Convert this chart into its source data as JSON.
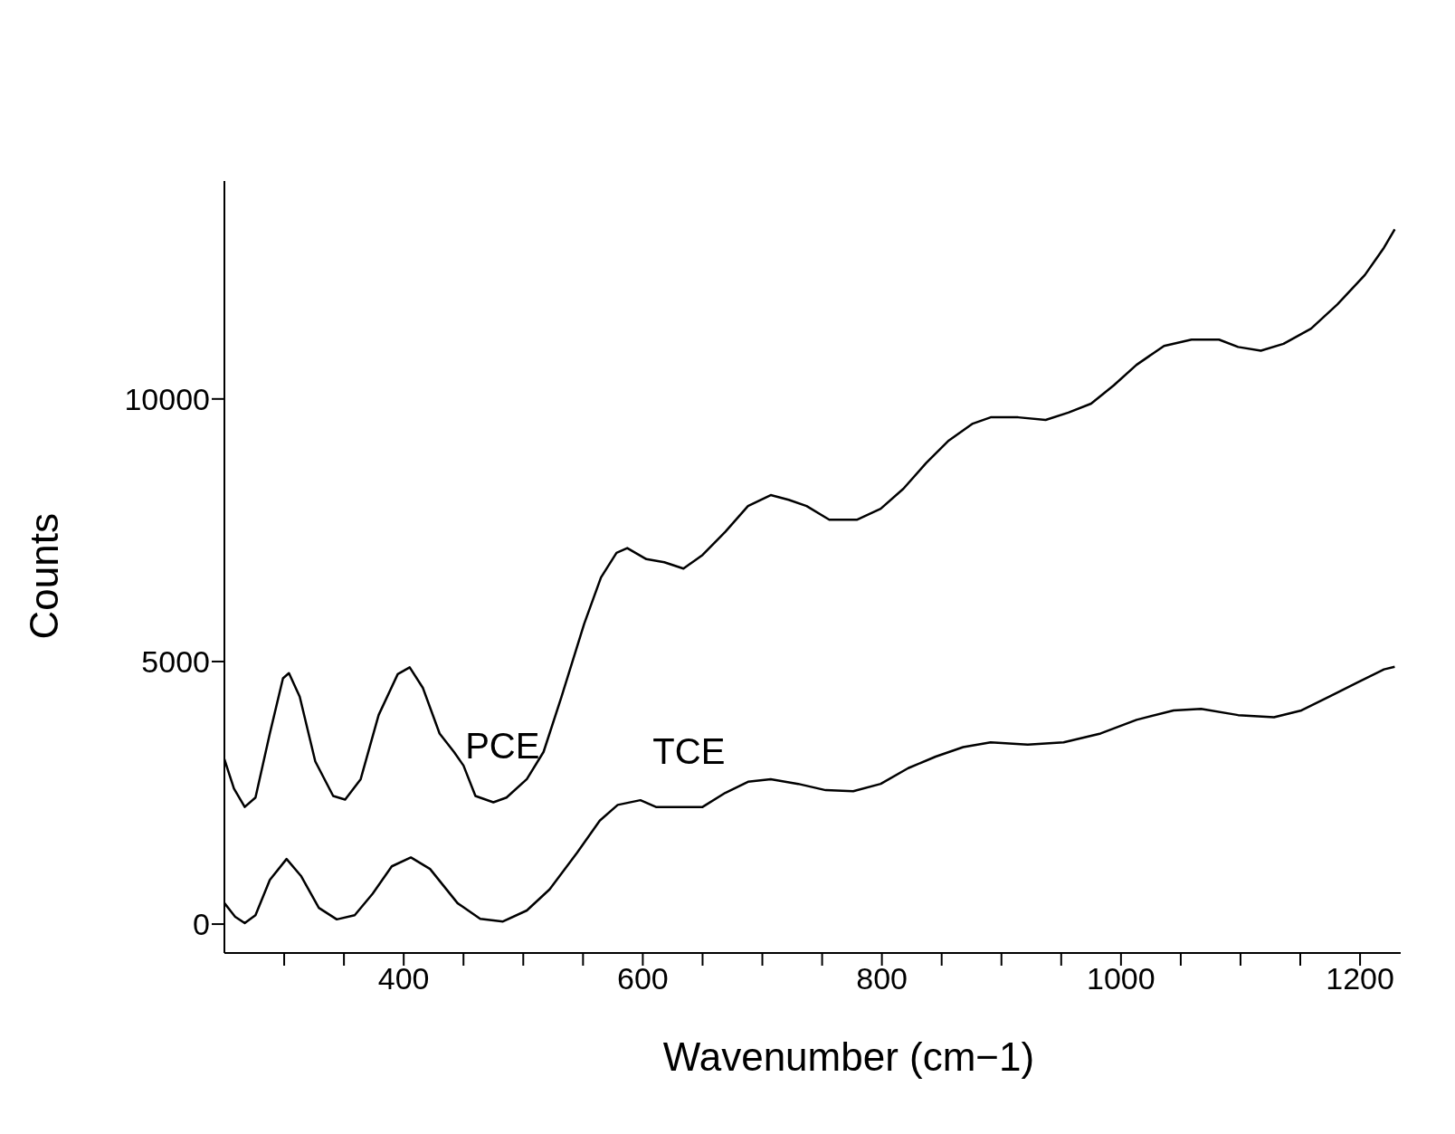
{
  "chart_data": {
    "type": "line",
    "xlabel": "Wavenumber (cm−1)",
    "ylabel": "Counts",
    "xlim": [
      250,
      1234
    ],
    "ylim": [
      -550,
      14150
    ],
    "xticks": [
      {
        "value": 300,
        "label": null
      },
      {
        "value": 350,
        "label": null
      },
      400,
      {
        "value": 450,
        "label": null
      },
      {
        "value": 500,
        "label": null
      },
      {
        "value": 550,
        "label": null
      },
      600,
      {
        "value": 650,
        "label": null
      },
      {
        "value": 700,
        "label": null
      },
      {
        "value": 750,
        "label": null
      },
      800,
      {
        "value": 850,
        "label": null
      },
      {
        "value": 900,
        "label": null
      },
      {
        "value": 950,
        "label": null
      },
      1000,
      {
        "value": 1050,
        "label": null
      },
      {
        "value": 1100,
        "label": null
      },
      {
        "value": 1150,
        "label": null
      },
      1200
    ],
    "yticks": [
      0,
      5000,
      10000
    ],
    "grid": false,
    "legend": false,
    "marker": "none",
    "line_style": "solid",
    "series": [
      {
        "name": "PCE",
        "color": "#000000",
        "x": [
          250,
          258,
          267,
          276,
          288,
          299,
          304,
          313,
          326,
          341,
          351,
          364,
          379,
          395,
          405,
          416,
          430,
          442,
          450,
          460,
          475,
          486,
          503,
          517,
          532,
          551,
          565,
          578,
          587,
          603,
          618,
          634,
          650,
          669,
          688,
          707,
          722,
          737,
          756,
          779,
          799,
          818,
          837,
          856,
          876,
          891,
          914,
          937,
          956,
          975,
          994,
          1013,
          1036,
          1059,
          1082,
          1098,
          1117,
          1136,
          1159,
          1181,
          1204,
          1220,
          1229
        ],
        "values": [
          3140,
          2580,
          2230,
          2410,
          3630,
          4680,
          4780,
          4330,
          3100,
          2440,
          2370,
          2760,
          3980,
          4760,
          4890,
          4500,
          3630,
          3280,
          3020,
          2440,
          2320,
          2410,
          2760,
          3280,
          4330,
          5720,
          6600,
          7070,
          7160,
          6950,
          6890,
          6770,
          7030,
          7470,
          7960,
          8170,
          8080,
          7960,
          7700,
          7700,
          7910,
          8290,
          8780,
          9210,
          9530,
          9650,
          9650,
          9600,
          9740,
          9910,
          10260,
          10650,
          11010,
          11130,
          11130,
          10990,
          10920,
          11050,
          11340,
          11800,
          12360,
          12880,
          13230
        ]
      },
      {
        "name": "TCE",
        "color": "#000000",
        "x": [
          250,
          259,
          267,
          276,
          288,
          302,
          314,
          329,
          344,
          359,
          374,
          390,
          406,
          422,
          445,
          464,
          483,
          503,
          522,
          545,
          564,
          579,
          598,
          611,
          631,
          650,
          669,
          688,
          707,
          730,
          753,
          776,
          799,
          822,
          845,
          868,
          891,
          922,
          952,
          983,
          1013,
          1044,
          1067,
          1098,
          1128,
          1151,
          1174,
          1197,
          1220,
          1229
        ],
        "values": [
          400,
          140,
          20,
          170,
          840,
          1240,
          920,
          310,
          90,
          170,
          580,
          1100,
          1270,
          1050,
          400,
          100,
          50,
          260,
          660,
          1360,
          1970,
          2270,
          2360,
          2230,
          2230,
          2230,
          2500,
          2710,
          2760,
          2670,
          2550,
          2530,
          2670,
          2970,
          3190,
          3370,
          3460,
          3420,
          3460,
          3630,
          3890,
          4070,
          4100,
          3980,
          3940,
          4070,
          4330,
          4590,
          4850,
          4900
        ]
      }
    ]
  }
}
